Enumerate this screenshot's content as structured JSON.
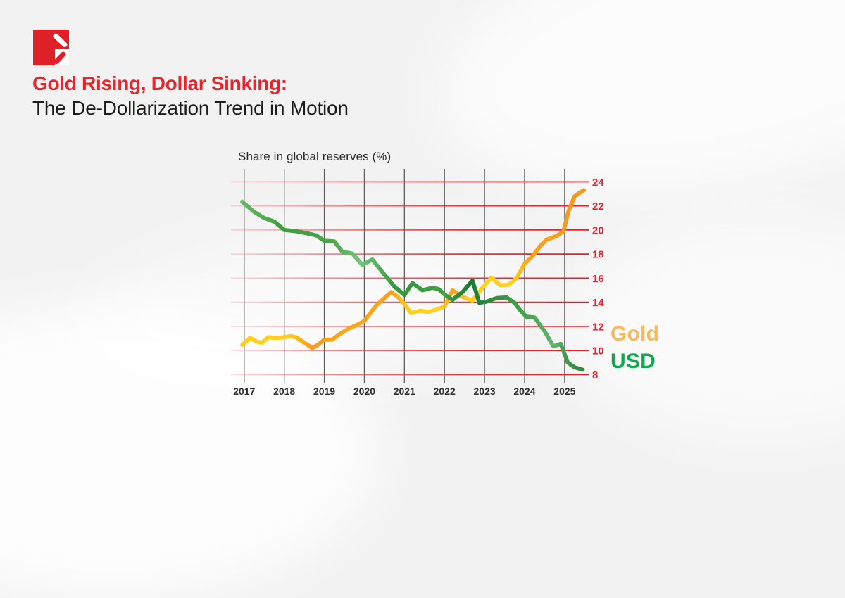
{
  "page": {
    "background": "#f2f2f3"
  },
  "logo": {
    "name": "brand-logo",
    "red": "#DD2127",
    "white": "#ffffff"
  },
  "header": {
    "title": "Gold Rising, Dollar Sinking:",
    "title_color": "#E8252B",
    "subtitle": "The De-Dollarization Trend in Motion",
    "subtitle_color": "#1c1c1c"
  },
  "chart_data": {
    "type": "line",
    "title": "Share in global reserves (%)",
    "xlabel": "",
    "ylabel": "Share in global reserves (%)",
    "x_tick_labels": [
      "2017",
      "2018",
      "2019",
      "2020",
      "2021",
      "2022",
      "2023",
      "2024",
      "2025"
    ],
    "x_tick_years": [
      2017,
      2018,
      2019,
      2020,
      2021,
      2022,
      2023,
      2024,
      2025
    ],
    "y_ticks": [
      8,
      10,
      12,
      14,
      16,
      18,
      20,
      22,
      24
    ],
    "ylim": [
      8,
      24
    ],
    "xlim": [
      2016.67,
      2025.6
    ],
    "grid": true,
    "legend_position": "right",
    "axis_colors": {
      "y_label_color": "#E8212B",
      "x_label_color": "#2e2e2e",
      "h_grid_color": "#E51E28",
      "v_grid_color": "#4d4d4d"
    },
    "series": [
      {
        "name": "Gold",
        "legend_color": "#F7B95A",
        "base_color": "#F7A01D",
        "gradient": [
          [
            0.0,
            "#FFD21E"
          ],
          [
            0.16,
            "#FFCB1C"
          ],
          [
            0.225,
            "#F79C1B"
          ],
          [
            0.3,
            "#F8A41D"
          ],
          [
            0.4,
            "#F8A61D"
          ],
          [
            0.445,
            "#F79E1E"
          ],
          [
            0.5,
            "#FFD21E"
          ],
          [
            0.585,
            "#FFD21E"
          ],
          [
            0.62,
            "#F8A01D"
          ],
          [
            0.665,
            "#FFD01D"
          ],
          [
            0.785,
            "#FFD21E"
          ],
          [
            0.835,
            "#F8A41D"
          ],
          [
            1.0,
            "#F7941D"
          ]
        ],
        "points": [
          [
            2016.95,
            10.45
          ],
          [
            2017.15,
            11.05
          ],
          [
            2017.3,
            10.75
          ],
          [
            2017.45,
            10.65
          ],
          [
            2017.6,
            11.1
          ],
          [
            2017.8,
            11.05
          ],
          [
            2018.0,
            11.1
          ],
          [
            2018.15,
            11.2
          ],
          [
            2018.3,
            11.1
          ],
          [
            2018.7,
            10.2
          ],
          [
            2018.85,
            10.5
          ],
          [
            2019.0,
            10.9
          ],
          [
            2019.2,
            10.9
          ],
          [
            2019.4,
            11.4
          ],
          [
            2019.6,
            11.8
          ],
          [
            2019.8,
            12.1
          ],
          [
            2020.0,
            12.45
          ],
          [
            2020.3,
            13.75
          ],
          [
            2020.5,
            14.35
          ],
          [
            2020.67,
            14.85
          ],
          [
            2020.82,
            14.5
          ],
          [
            2021.0,
            13.85
          ],
          [
            2021.17,
            13.1
          ],
          [
            2021.4,
            13.3
          ],
          [
            2021.6,
            13.2
          ],
          [
            2021.8,
            13.4
          ],
          [
            2022.0,
            13.65
          ],
          [
            2022.2,
            15.0
          ],
          [
            2022.45,
            14.45
          ],
          [
            2022.7,
            14.15
          ],
          [
            2022.92,
            15.1
          ],
          [
            2023.17,
            16.05
          ],
          [
            2023.4,
            15.4
          ],
          [
            2023.6,
            15.45
          ],
          [
            2023.8,
            16.0
          ],
          [
            2024.0,
            17.2
          ],
          [
            2024.2,
            17.85
          ],
          [
            2024.4,
            18.7
          ],
          [
            2024.55,
            19.2
          ],
          [
            2024.8,
            19.5
          ],
          [
            2024.97,
            19.9
          ],
          [
            2025.1,
            21.6
          ],
          [
            2025.25,
            22.8
          ],
          [
            2025.35,
            23.05
          ],
          [
            2025.48,
            23.3
          ]
        ]
      },
      {
        "name": "USD",
        "legend_color": "#0CA94F",
        "base_color": "#3F9C3C",
        "gradient": [
          [
            0.0,
            "#6FC26B"
          ],
          [
            0.15,
            "#3F9C3C"
          ],
          [
            0.285,
            "#4FA44B"
          ],
          [
            0.36,
            "#76C47A"
          ],
          [
            0.46,
            "#379841"
          ],
          [
            0.6,
            "#3F9E3F"
          ],
          [
            0.665,
            "#1B7B33"
          ],
          [
            0.72,
            "#2F8C3C"
          ],
          [
            0.83,
            "#46A34E"
          ],
          [
            0.9,
            "#62B46C"
          ],
          [
            0.945,
            "#3E9448"
          ],
          [
            1.0,
            "#2E8440"
          ]
        ],
        "points": [
          [
            2016.95,
            22.35
          ],
          [
            2017.25,
            21.5
          ],
          [
            2017.5,
            21.0
          ],
          [
            2017.75,
            20.7
          ],
          [
            2018.0,
            20.0
          ],
          [
            2018.3,
            19.9
          ],
          [
            2018.6,
            19.7
          ],
          [
            2018.8,
            19.55
          ],
          [
            2019.0,
            19.1
          ],
          [
            2019.25,
            19.05
          ],
          [
            2019.45,
            18.2
          ],
          [
            2019.7,
            18.05
          ],
          [
            2019.95,
            17.1
          ],
          [
            2020.2,
            17.55
          ],
          [
            2020.5,
            16.3
          ],
          [
            2020.75,
            15.3
          ],
          [
            2021.0,
            14.6
          ],
          [
            2021.2,
            15.6
          ],
          [
            2021.45,
            15.0
          ],
          [
            2021.7,
            15.2
          ],
          [
            2021.85,
            15.1
          ],
          [
            2022.0,
            14.65
          ],
          [
            2022.2,
            14.2
          ],
          [
            2022.45,
            14.85
          ],
          [
            2022.7,
            15.8
          ],
          [
            2022.87,
            13.95
          ],
          [
            2023.05,
            14.05
          ],
          [
            2023.3,
            14.35
          ],
          [
            2023.55,
            14.4
          ],
          [
            2023.75,
            13.95
          ],
          [
            2023.9,
            13.3
          ],
          [
            2024.05,
            12.8
          ],
          [
            2024.25,
            12.75
          ],
          [
            2024.5,
            11.6
          ],
          [
            2024.72,
            10.35
          ],
          [
            2024.9,
            10.55
          ],
          [
            2025.08,
            9.0
          ],
          [
            2025.25,
            8.6
          ],
          [
            2025.45,
            8.4
          ]
        ]
      }
    ]
  }
}
